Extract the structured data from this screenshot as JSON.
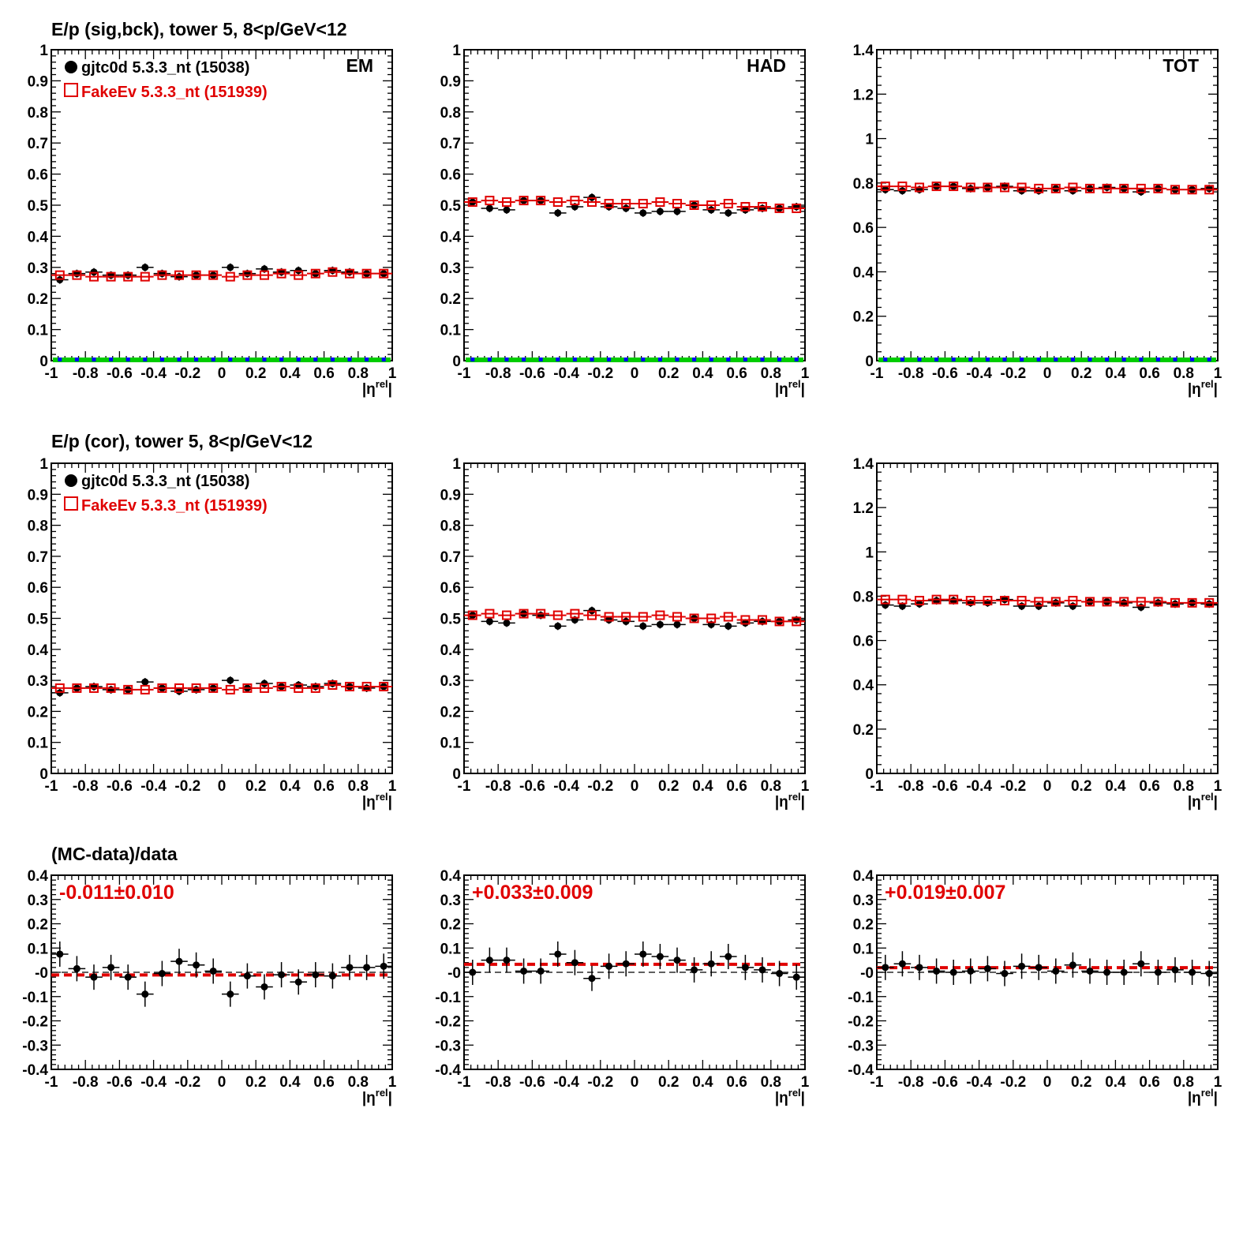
{
  "colors": {
    "data": "#000000",
    "mc": "#e00000",
    "zero_band": "#00cc00",
    "zero_marker": "#0000ff"
  },
  "row_titles": [
    "E/p (sig,bck), tower 5,  8<p/GeV<12",
    "E/p (cor), tower 5,  8<p/GeV<12",
    "(MC-data)/data"
  ],
  "legend": {
    "data": "gjtc0d 5.3.3_nt (15038)",
    "mc": "FakeEv 5.3.3_nt (151939)"
  },
  "chart_data": [
    {
      "type": "scatter",
      "row": 0,
      "col": 0,
      "label": "EM",
      "title": "E/p (sig,bck), tower 5,  8<p/GeV<12",
      "legend": true,
      "zero_markers": true,
      "xlabel": "|η^rel|",
      "xlim": [
        -1,
        1
      ],
      "ylim": [
        0,
        1
      ],
      "yticks": [
        "0",
        "0.1",
        "0.2",
        "0.3",
        "0.4",
        "0.5",
        "0.6",
        "0.7",
        "0.8",
        "0.9",
        "1"
      ],
      "x": [
        -0.95,
        -0.85,
        -0.75,
        -0.65,
        -0.55,
        -0.45,
        -0.35,
        -0.25,
        -0.15,
        -0.05,
        0.05,
        0.15,
        0.25,
        0.35,
        0.45,
        0.55,
        0.65,
        0.75,
        0.85,
        0.95
      ],
      "series": [
        {
          "name": "gjtc0d 5.3.3_nt (15038)",
          "values": [
            0.26,
            0.28,
            0.285,
            0.275,
            0.275,
            0.3,
            0.28,
            0.27,
            0.275,
            0.275,
            0.3,
            0.28,
            0.295,
            0.285,
            0.29,
            0.28,
            0.29,
            0.285,
            0.28,
            0.28
          ]
        },
        {
          "name": "FakeEv 5.3.3_nt (151939)",
          "values": [
            0.275,
            0.275,
            0.27,
            0.27,
            0.27,
            0.27,
            0.275,
            0.275,
            0.275,
            0.275,
            0.27,
            0.275,
            0.275,
            0.28,
            0.275,
            0.28,
            0.285,
            0.28,
            0.28,
            0.28
          ]
        }
      ]
    },
    {
      "type": "scatter",
      "row": 0,
      "col": 1,
      "label": "HAD",
      "zero_markers": true,
      "xlabel": "|η^rel|",
      "xlim": [
        -1,
        1
      ],
      "ylim": [
        0,
        1
      ],
      "yticks": [
        "0",
        "0.1",
        "0.2",
        "0.3",
        "0.4",
        "0.5",
        "0.6",
        "0.7",
        "0.8",
        "0.9",
        "1"
      ],
      "x": [
        -0.95,
        -0.85,
        -0.75,
        -0.65,
        -0.55,
        -0.45,
        -0.35,
        -0.25,
        -0.15,
        -0.05,
        0.05,
        0.15,
        0.25,
        0.35,
        0.45,
        0.55,
        0.65,
        0.75,
        0.85,
        0.95
      ],
      "series": [
        {
          "name": "gjtc0d 5.3.3_nt (15038)",
          "values": [
            0.51,
            0.49,
            0.485,
            0.515,
            0.515,
            0.475,
            0.495,
            0.525,
            0.495,
            0.49,
            0.475,
            0.48,
            0.48,
            0.5,
            0.485,
            0.475,
            0.485,
            0.49,
            0.49,
            0.495
          ]
        },
        {
          "name": "FakeEv 5.3.3_nt (151939)",
          "values": [
            0.51,
            0.515,
            0.51,
            0.515,
            0.515,
            0.51,
            0.515,
            0.51,
            0.505,
            0.505,
            0.505,
            0.51,
            0.505,
            0.5,
            0.5,
            0.505,
            0.495,
            0.495,
            0.49,
            0.49
          ]
        }
      ]
    },
    {
      "type": "scatter",
      "row": 0,
      "col": 2,
      "label": "TOT",
      "zero_markers": true,
      "xlabel": "|η^rel|",
      "xlim": [
        -1,
        1
      ],
      "ylim": [
        0,
        1.4
      ],
      "yticks": [
        "0",
        "0.2",
        "0.4",
        "0.6",
        "0.8",
        "1",
        "1.2",
        "1.4"
      ],
      "x": [
        -0.95,
        -0.85,
        -0.75,
        -0.65,
        -0.55,
        -0.45,
        -0.35,
        -0.25,
        -0.15,
        -0.05,
        0.05,
        0.15,
        0.25,
        0.35,
        0.45,
        0.55,
        0.65,
        0.75,
        0.85,
        0.95
      ],
      "series": [
        {
          "name": "gjtc0d 5.3.3_nt (15038)",
          "values": [
            0.77,
            0.765,
            0.77,
            0.785,
            0.785,
            0.775,
            0.78,
            0.785,
            0.765,
            0.765,
            0.775,
            0.765,
            0.775,
            0.78,
            0.775,
            0.76,
            0.775,
            0.77,
            0.77,
            0.775
          ]
        },
        {
          "name": "FakeEv 5.3.3_nt (151939)",
          "values": [
            0.785,
            0.785,
            0.78,
            0.785,
            0.785,
            0.78,
            0.78,
            0.78,
            0.78,
            0.775,
            0.775,
            0.78,
            0.775,
            0.775,
            0.775,
            0.775,
            0.775,
            0.77,
            0.77,
            0.77
          ]
        }
      ]
    },
    {
      "type": "scatter",
      "row": 1,
      "col": 0,
      "title": "E/p (cor), tower 5,  8<p/GeV<12",
      "legend": true,
      "xlabel": "|η^rel|",
      "xlim": [
        -1,
        1
      ],
      "ylim": [
        0,
        1
      ],
      "yticks": [
        "0",
        "0.1",
        "0.2",
        "0.3",
        "0.4",
        "0.5",
        "0.6",
        "0.7",
        "0.8",
        "0.9",
        "1"
      ],
      "x": [
        -0.95,
        -0.85,
        -0.75,
        -0.65,
        -0.55,
        -0.45,
        -0.35,
        -0.25,
        -0.15,
        -0.05,
        0.05,
        0.15,
        0.25,
        0.35,
        0.45,
        0.55,
        0.65,
        0.75,
        0.85,
        0.95
      ],
      "series": [
        {
          "name": "gjtc0d 5.3.3_nt (15038)",
          "values": [
            0.26,
            0.275,
            0.28,
            0.27,
            0.27,
            0.295,
            0.275,
            0.265,
            0.27,
            0.275,
            0.3,
            0.275,
            0.29,
            0.28,
            0.285,
            0.28,
            0.29,
            0.28,
            0.275,
            0.28
          ]
        },
        {
          "name": "FakeEv 5.3.3_nt (151939)",
          "values": [
            0.275,
            0.275,
            0.275,
            0.275,
            0.27,
            0.27,
            0.275,
            0.275,
            0.275,
            0.275,
            0.27,
            0.275,
            0.275,
            0.28,
            0.275,
            0.275,
            0.285,
            0.28,
            0.28,
            0.28
          ]
        }
      ]
    },
    {
      "type": "scatter",
      "row": 1,
      "col": 1,
      "xlabel": "|η^rel|",
      "xlim": [
        -1,
        1
      ],
      "ylim": [
        0,
        1
      ],
      "yticks": [
        "0",
        "0.1",
        "0.2",
        "0.3",
        "0.4",
        "0.5",
        "0.6",
        "0.7",
        "0.8",
        "0.9",
        "1"
      ],
      "x": [
        -0.95,
        -0.85,
        -0.75,
        -0.65,
        -0.55,
        -0.45,
        -0.35,
        -0.25,
        -0.15,
        -0.05,
        0.05,
        0.15,
        0.25,
        0.35,
        0.45,
        0.55,
        0.65,
        0.75,
        0.85,
        0.95
      ],
      "series": [
        {
          "name": "gjtc0d 5.3.3_nt (15038)",
          "values": [
            0.51,
            0.49,
            0.485,
            0.515,
            0.51,
            0.475,
            0.495,
            0.525,
            0.495,
            0.49,
            0.475,
            0.48,
            0.48,
            0.5,
            0.48,
            0.475,
            0.485,
            0.49,
            0.49,
            0.495
          ]
        },
        {
          "name": "FakeEv 5.3.3_nt (151939)",
          "values": [
            0.51,
            0.515,
            0.51,
            0.515,
            0.515,
            0.51,
            0.515,
            0.51,
            0.505,
            0.505,
            0.505,
            0.51,
            0.505,
            0.5,
            0.5,
            0.505,
            0.495,
            0.495,
            0.49,
            0.49
          ]
        }
      ]
    },
    {
      "type": "scatter",
      "row": 1,
      "col": 2,
      "xlabel": "|η^rel|",
      "xlim": [
        -1,
        1
      ],
      "ylim": [
        0,
        1.4
      ],
      "yticks": [
        "0",
        "0.2",
        "0.4",
        "0.6",
        "0.8",
        "1",
        "1.2",
        "1.4"
      ],
      "x": [
        -0.95,
        -0.85,
        -0.75,
        -0.65,
        -0.55,
        -0.45,
        -0.35,
        -0.25,
        -0.15,
        -0.05,
        0.05,
        0.15,
        0.25,
        0.35,
        0.45,
        0.55,
        0.65,
        0.75,
        0.85,
        0.95
      ],
      "series": [
        {
          "name": "gjtc0d 5.3.3_nt (15038)",
          "values": [
            0.76,
            0.755,
            0.765,
            0.78,
            0.78,
            0.77,
            0.77,
            0.785,
            0.755,
            0.755,
            0.77,
            0.755,
            0.775,
            0.775,
            0.77,
            0.75,
            0.77,
            0.765,
            0.77,
            0.765
          ]
        },
        {
          "name": "FakeEv 5.3.3_nt (151939)",
          "values": [
            0.785,
            0.785,
            0.78,
            0.785,
            0.785,
            0.78,
            0.78,
            0.78,
            0.78,
            0.775,
            0.775,
            0.78,
            0.775,
            0.775,
            0.775,
            0.775,
            0.775,
            0.77,
            0.77,
            0.77
          ]
        }
      ]
    },
    {
      "type": "scatter",
      "row": 2,
      "col": 0,
      "title": "(MC-data)/data",
      "ratio": true,
      "fit_text": "-0.011±0.010",
      "fit": -0.011,
      "xlabel": "|η^rel|",
      "xlim": [
        -1,
        1
      ],
      "ylim": [
        -0.4,
        0.4
      ],
      "yticks": [
        "-0.4",
        "-0.3",
        "-0.2",
        "-0.1",
        "-0",
        "0.1",
        "0.2",
        "0.3",
        "0.4"
      ],
      "x": [
        -0.95,
        -0.85,
        -0.75,
        -0.65,
        -0.55,
        -0.45,
        -0.35,
        -0.25,
        -0.15,
        -0.05,
        0.05,
        0.15,
        0.25,
        0.35,
        0.45,
        0.55,
        0.65,
        0.75,
        0.85,
        0.95
      ],
      "series": [
        {
          "values": [
            0.075,
            0.015,
            -0.02,
            0.02,
            -0.02,
            -0.09,
            -0.005,
            0.045,
            0.03,
            0.005,
            -0.09,
            -0.015,
            -0.06,
            -0.01,
            -0.04,
            -0.01,
            -0.015,
            0.02,
            0.02,
            0.025
          ]
        }
      ]
    },
    {
      "type": "scatter",
      "row": 2,
      "col": 1,
      "ratio": true,
      "fit_text": "+0.033±0.009",
      "fit": 0.033,
      "xlabel": "|η^rel|",
      "xlim": [
        -1,
        1
      ],
      "ylim": [
        -0.4,
        0.4
      ],
      "yticks": [
        "-0.4",
        "-0.3",
        "-0.2",
        "-0.1",
        "-0",
        "0.1",
        "0.2",
        "0.3",
        "0.4"
      ],
      "x": [
        -0.95,
        -0.85,
        -0.75,
        -0.65,
        -0.55,
        -0.45,
        -0.35,
        -0.25,
        -0.15,
        -0.05,
        0.05,
        0.15,
        0.25,
        0.35,
        0.45,
        0.55,
        0.65,
        0.75,
        0.85,
        0.95
      ],
      "series": [
        {
          "values": [
            0.0,
            0.05,
            0.05,
            0.005,
            0.005,
            0.075,
            0.04,
            -0.025,
            0.025,
            0.035,
            0.075,
            0.065,
            0.05,
            0.01,
            0.035,
            0.065,
            0.02,
            0.01,
            -0.005,
            -0.02
          ]
        }
      ]
    },
    {
      "type": "scatter",
      "row": 2,
      "col": 2,
      "ratio": true,
      "fit_text": "+0.019±0.007",
      "fit": 0.019,
      "xlabel": "|η^rel|",
      "xlim": [
        -1,
        1
      ],
      "ylim": [
        -0.4,
        0.4
      ],
      "yticks": [
        "-0.4",
        "-0.3",
        "-0.2",
        "-0.1",
        "-0",
        "0.1",
        "0.2",
        "0.3",
        "0.4"
      ],
      "x": [
        -0.95,
        -0.85,
        -0.75,
        -0.65,
        -0.55,
        -0.45,
        -0.35,
        -0.25,
        -0.15,
        -0.05,
        0.05,
        0.15,
        0.25,
        0.35,
        0.45,
        0.55,
        0.65,
        0.75,
        0.85,
        0.95
      ],
      "series": [
        {
          "values": [
            0.02,
            0.035,
            0.02,
            0.005,
            0.0,
            0.005,
            0.015,
            -0.005,
            0.025,
            0.02,
            0.005,
            0.03,
            0.005,
            0.0,
            0.0,
            0.035,
            0.0,
            0.01,
            0.0,
            -0.005
          ]
        }
      ]
    }
  ]
}
